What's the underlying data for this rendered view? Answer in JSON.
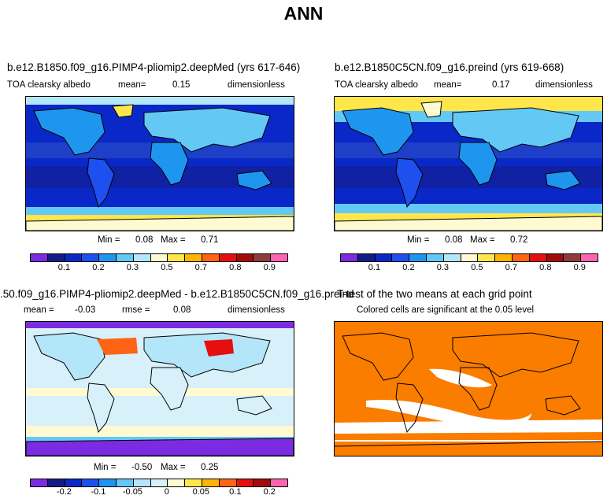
{
  "title": "ANN",
  "panels": [
    {
      "title": "b.e12.B1850.f09_g16.PIMP4-pliomip2.deepMed (yrs 617-646)",
      "variable": "TOA clearsky albedo",
      "mean_label": "mean=",
      "mean_value": "0.15",
      "units": "dimensionless",
      "min_label": "Min =",
      "min_value": "0.08",
      "max_label": "Max =",
      "max_value": "0.71"
    },
    {
      "title": "b.e12.B1850C5CN.f09_g16.preind (yrs 619-668)",
      "variable": "TOA clearsky albedo",
      "mean_label": "mean=",
      "mean_value": "0.17",
      "units": "dimensionless",
      "min_label": "Min =",
      "min_value": "0.08",
      "max_label": "Max =",
      "max_value": "0.72"
    },
    {
      "title": ".50.f09_g16.PIMP4-pliomip2.deepMed - b.e12.B1850C5CN.f09_g16.preind",
      "mean_label": "mean =",
      "mean_value": "-0.03",
      "rmse_label": "rmse =",
      "rmse_value": "0.08",
      "units": "dimensionless",
      "min_label": "Min =",
      "min_value": "-0.50",
      "max_label": "Max =",
      "max_value": "0.25"
    },
    {
      "title": "T-test of the two means at each grid point",
      "subtitle": "Colored cells are significant at the 0.05 level"
    }
  ],
  "colorbars": {
    "albedo": {
      "colors": [
        "#7b2be0",
        "#151b85",
        "#0a28c8",
        "#1e50f0",
        "#1e96f0",
        "#64c8f5",
        "#b4e6fa",
        "#fffad2",
        "#ffe64b",
        "#ffb400",
        "#ff6414",
        "#e60f0f",
        "#a50a0a",
        "#913c3c",
        "#ff64b4"
      ],
      "tick_labels": [
        "0.1",
        "0.2",
        "0.3",
        "0.5",
        "0.7",
        "0.8",
        "0.9"
      ],
      "tick_positions": [
        2,
        4,
        6,
        8,
        10,
        12,
        14
      ]
    },
    "diff": {
      "colors": [
        "#7b2be0",
        "#151b85",
        "#0a28c8",
        "#1e50f0",
        "#1e96f0",
        "#64c8f5",
        "#b4e6fa",
        "#d8f0fa",
        "#fffad2",
        "#ffe64b",
        "#ffb400",
        "#ff6414",
        "#e60f0f",
        "#a50a0a",
        "#ff64b4"
      ],
      "tick_labels": [
        "-0.2",
        "-0.1",
        "-0.05",
        "0",
        "0.05",
        "0.1",
        "0.2"
      ],
      "tick_positions": [
        2,
        4,
        6,
        8,
        10,
        12,
        14
      ]
    }
  },
  "chart_data": [
    {
      "type": "heatmap",
      "title": "b.e12.B1850.f09_g16.PIMP4-pliomip2.deepMed (yrs 617-646)",
      "variable": "TOA clearsky albedo",
      "units": "dimensionless",
      "mean": 0.15,
      "min": 0.08,
      "max": 0.71,
      "colorbar_levels": [
        0.1,
        0.2,
        0.3,
        0.5,
        0.7,
        0.8,
        0.9
      ]
    },
    {
      "type": "heatmap",
      "title": "b.e12.B1850C5CN.f09_g16.preind (yrs 619-668)",
      "variable": "TOA clearsky albedo",
      "units": "dimensionless",
      "mean": 0.17,
      "min": 0.08,
      "max": 0.72,
      "colorbar_levels": [
        0.1,
        0.2,
        0.3,
        0.5,
        0.7,
        0.8,
        0.9
      ]
    },
    {
      "type": "heatmap",
      "title": ".50.f09_g16.PIMP4-pliomip2.deepMed - b.e12.B1850C5CN.f09_g16.preind",
      "units": "dimensionless",
      "mean": -0.03,
      "rmse": 0.08,
      "min": -0.5,
      "max": 0.25,
      "colorbar_levels": [
        -0.2,
        -0.1,
        -0.05,
        0,
        0.05,
        0.1,
        0.2
      ]
    },
    {
      "type": "heatmap",
      "title": "T-test of the two means at each grid point",
      "subtitle": "Colored cells are significant at the 0.05 level"
    }
  ]
}
